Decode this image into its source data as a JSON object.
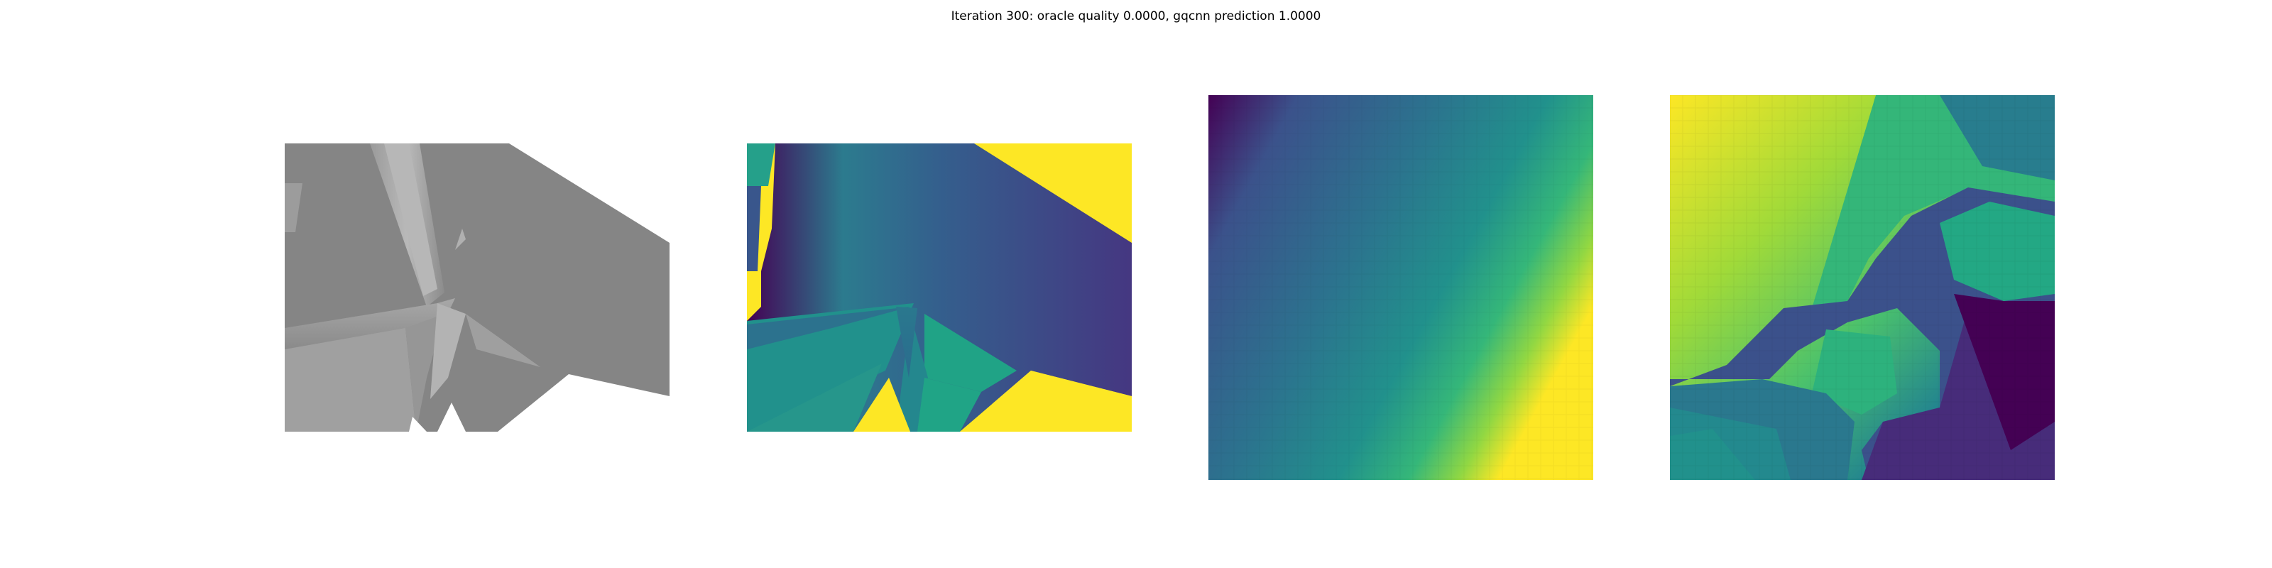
{
  "figure": {
    "title": "Iteration 300: oracle quality 0.0000, gqcnn prediction 1.0000"
  },
  "panels": [
    {
      "name": "rendered-grayscale-view"
    },
    {
      "name": "rendered-depth-view"
    },
    {
      "name": "depth-crop-before"
    },
    {
      "name": "depth-crop-after"
    }
  ],
  "colormap": {
    "name": "viridis",
    "stops": [
      "#440154",
      "#482777",
      "#3f4a8a",
      "#31688e",
      "#26838f",
      "#1f9d8a",
      "#6cce5a",
      "#b6de2b",
      "#fee825"
    ]
  }
}
